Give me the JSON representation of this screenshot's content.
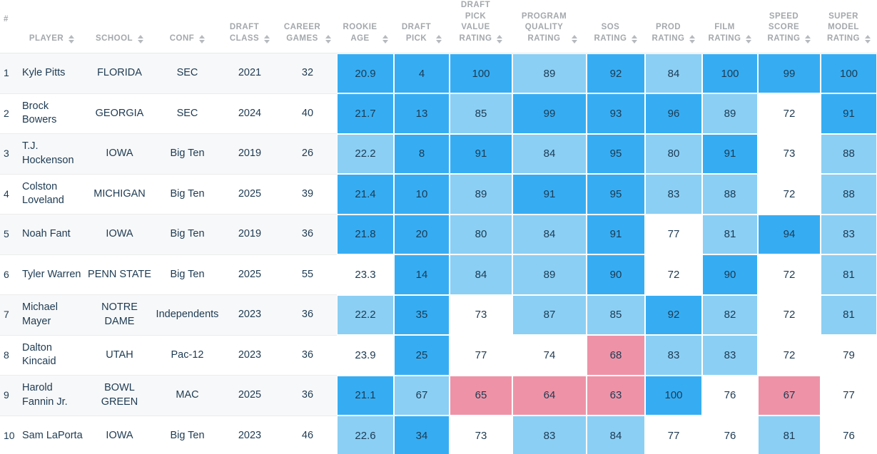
{
  "colors": {
    "cell_high": "#36adf3",
    "cell_mid": "#8bcff4",
    "cell_low": "#ee93a7",
    "header_text": "#a4a8ac",
    "body_text": "#1d3a52",
    "row_stripe": "#f7f8f9"
  },
  "table": {
    "columns": [
      {
        "key": "rank",
        "label": "#",
        "sortable": false
      },
      {
        "key": "player",
        "label": "PLAYER",
        "sortable": true
      },
      {
        "key": "school",
        "label": "SCHOOL",
        "sortable": true
      },
      {
        "key": "conf",
        "label": "CONF",
        "sortable": true
      },
      {
        "key": "draft-class",
        "label": "DRAFT\nCLASS",
        "sortable": true
      },
      {
        "key": "career-games",
        "label": "CAREER\nGAMES",
        "sortable": true
      },
      {
        "key": "rookie-age",
        "label": "ROOKIE\nAGE",
        "sortable": true
      },
      {
        "key": "draft-pick",
        "label": "DRAFT\nPICK",
        "sortable": true
      },
      {
        "key": "draft-pick-value-rating",
        "label": "DRAFT\nPICK\nVALUE\nRATING",
        "sortable": true
      },
      {
        "key": "program-quality-rating",
        "label": "PROGRAM\nQUALITY\nRATING",
        "sortable": true
      },
      {
        "key": "sos-rating",
        "label": "SOS\nRATING",
        "sortable": true
      },
      {
        "key": "prod-rating",
        "label": "PROD\nRATING",
        "sortable": true
      },
      {
        "key": "film-rating",
        "label": "FILM\nRATING",
        "sortable": true
      },
      {
        "key": "speed-score-rating",
        "label": "SPEED\nSCORE\nRATING",
        "sortable": true
      },
      {
        "key": "super-model-rating",
        "label": "SUPER\nMODEL\nRATING",
        "sortable": true
      }
    ],
    "rows": [
      {
        "cells": [
          "1",
          "Kyle Pitts",
          "FLORIDA",
          "SEC",
          "2021",
          "32"
        ],
        "ratings": [
          {
            "v": "20.9",
            "c": "high"
          },
          {
            "v": "4",
            "c": "high"
          },
          {
            "v": "100",
            "c": "high"
          },
          {
            "v": "89",
            "c": "mid"
          },
          {
            "v": "92",
            "c": "high"
          },
          {
            "v": "84",
            "c": "mid"
          },
          {
            "v": "100",
            "c": "high"
          },
          {
            "v": "99",
            "c": "high"
          },
          {
            "v": "100",
            "c": "high"
          }
        ]
      },
      {
        "cells": [
          "2",
          "Brock Bowers",
          "GEORGIA",
          "SEC",
          "2024",
          "40"
        ],
        "ratings": [
          {
            "v": "21.7",
            "c": "high"
          },
          {
            "v": "13",
            "c": "high"
          },
          {
            "v": "85",
            "c": "mid"
          },
          {
            "v": "99",
            "c": "high"
          },
          {
            "v": "93",
            "c": "high"
          },
          {
            "v": "96",
            "c": "high"
          },
          {
            "v": "89",
            "c": "mid"
          },
          {
            "v": "72",
            "c": "none"
          },
          {
            "v": "91",
            "c": "high"
          }
        ]
      },
      {
        "cells": [
          "3",
          "T.J. Hockenson",
          "IOWA",
          "Big Ten",
          "2019",
          "26"
        ],
        "ratings": [
          {
            "v": "22.2",
            "c": "mid"
          },
          {
            "v": "8",
            "c": "high"
          },
          {
            "v": "91",
            "c": "high"
          },
          {
            "v": "84",
            "c": "mid"
          },
          {
            "v": "95",
            "c": "high"
          },
          {
            "v": "80",
            "c": "mid"
          },
          {
            "v": "91",
            "c": "high"
          },
          {
            "v": "73",
            "c": "none"
          },
          {
            "v": "88",
            "c": "mid"
          }
        ]
      },
      {
        "cells": [
          "4",
          "Colston Loveland",
          "MICHIGAN",
          "Big Ten",
          "2025",
          "39"
        ],
        "ratings": [
          {
            "v": "21.4",
            "c": "high"
          },
          {
            "v": "10",
            "c": "high"
          },
          {
            "v": "89",
            "c": "mid"
          },
          {
            "v": "91",
            "c": "high"
          },
          {
            "v": "95",
            "c": "high"
          },
          {
            "v": "83",
            "c": "mid"
          },
          {
            "v": "88",
            "c": "mid"
          },
          {
            "v": "72",
            "c": "none"
          },
          {
            "v": "88",
            "c": "mid"
          }
        ]
      },
      {
        "cells": [
          "5",
          "Noah Fant",
          "IOWA",
          "Big Ten",
          "2019",
          "36"
        ],
        "ratings": [
          {
            "v": "21.8",
            "c": "high"
          },
          {
            "v": "20",
            "c": "high"
          },
          {
            "v": "80",
            "c": "mid"
          },
          {
            "v": "84",
            "c": "mid"
          },
          {
            "v": "91",
            "c": "high"
          },
          {
            "v": "77",
            "c": "none"
          },
          {
            "v": "81",
            "c": "mid"
          },
          {
            "v": "94",
            "c": "high"
          },
          {
            "v": "83",
            "c": "mid"
          }
        ]
      },
      {
        "cells": [
          "6",
          "Tyler Warren",
          "PENN STATE",
          "Big Ten",
          "2025",
          "55"
        ],
        "ratings": [
          {
            "v": "23.3",
            "c": "none"
          },
          {
            "v": "14",
            "c": "high"
          },
          {
            "v": "84",
            "c": "mid"
          },
          {
            "v": "89",
            "c": "mid"
          },
          {
            "v": "90",
            "c": "high"
          },
          {
            "v": "72",
            "c": "none"
          },
          {
            "v": "90",
            "c": "high"
          },
          {
            "v": "72",
            "c": "none"
          },
          {
            "v": "81",
            "c": "mid"
          }
        ]
      },
      {
        "cells": [
          "7",
          "Michael Mayer",
          "NOTRE DAME",
          "Independents",
          "2023",
          "36"
        ],
        "ratings": [
          {
            "v": "22.2",
            "c": "mid"
          },
          {
            "v": "35",
            "c": "high"
          },
          {
            "v": "73",
            "c": "none"
          },
          {
            "v": "87",
            "c": "mid"
          },
          {
            "v": "85",
            "c": "mid"
          },
          {
            "v": "92",
            "c": "high"
          },
          {
            "v": "82",
            "c": "mid"
          },
          {
            "v": "72",
            "c": "none"
          },
          {
            "v": "81",
            "c": "mid"
          }
        ]
      },
      {
        "cells": [
          "8",
          "Dalton Kincaid",
          "UTAH",
          "Pac-12",
          "2023",
          "36"
        ],
        "ratings": [
          {
            "v": "23.9",
            "c": "none"
          },
          {
            "v": "25",
            "c": "high"
          },
          {
            "v": "77",
            "c": "none"
          },
          {
            "v": "74",
            "c": "none"
          },
          {
            "v": "68",
            "c": "low"
          },
          {
            "v": "83",
            "c": "mid"
          },
          {
            "v": "83",
            "c": "mid"
          },
          {
            "v": "72",
            "c": "none"
          },
          {
            "v": "79",
            "c": "none"
          }
        ]
      },
      {
        "cells": [
          "9",
          "Harold Fannin Jr.",
          "BOWL GREEN",
          "MAC",
          "2025",
          "36"
        ],
        "ratings": [
          {
            "v": "21.1",
            "c": "high"
          },
          {
            "v": "67",
            "c": "mid"
          },
          {
            "v": "65",
            "c": "low"
          },
          {
            "v": "64",
            "c": "low"
          },
          {
            "v": "63",
            "c": "low"
          },
          {
            "v": "100",
            "c": "high"
          },
          {
            "v": "76",
            "c": "none"
          },
          {
            "v": "67",
            "c": "low"
          },
          {
            "v": "77",
            "c": "none"
          }
        ]
      },
      {
        "cells": [
          "10",
          "Sam LaPorta",
          "IOWA",
          "Big Ten",
          "2023",
          "46"
        ],
        "ratings": [
          {
            "v": "22.6",
            "c": "mid"
          },
          {
            "v": "34",
            "c": "high"
          },
          {
            "v": "73",
            "c": "none"
          },
          {
            "v": "83",
            "c": "mid"
          },
          {
            "v": "84",
            "c": "mid"
          },
          {
            "v": "77",
            "c": "none"
          },
          {
            "v": "76",
            "c": "none"
          },
          {
            "v": "81",
            "c": "mid"
          },
          {
            "v": "76",
            "c": "none"
          }
        ]
      }
    ]
  }
}
